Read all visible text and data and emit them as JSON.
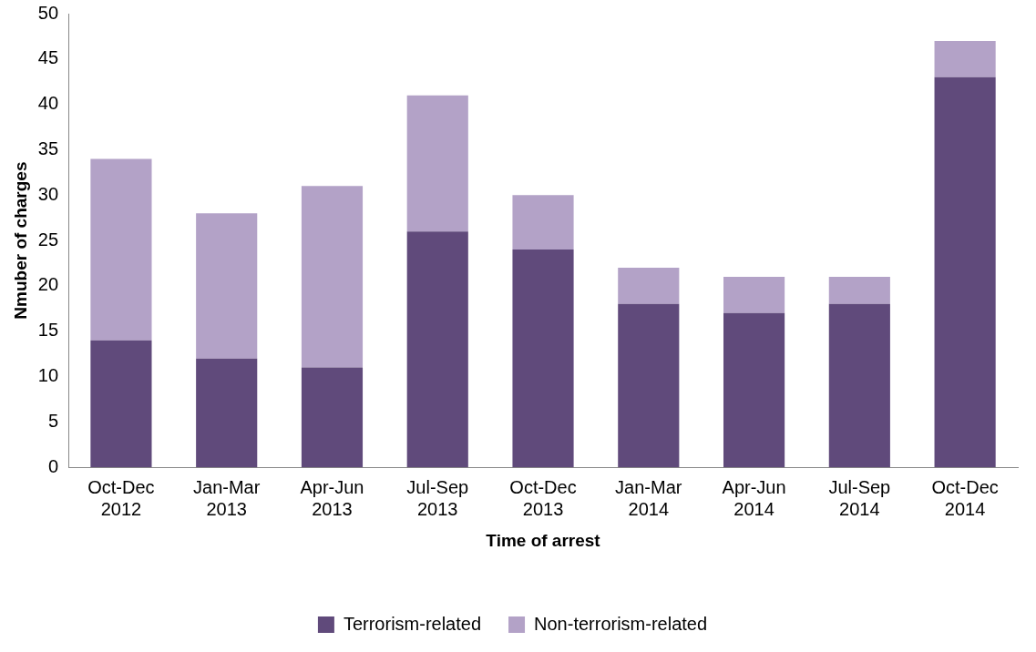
{
  "chart_data": {
    "type": "bar",
    "stacked": true,
    "xlabel": "Time of arrest",
    "ylabel": "Nmuber of charges",
    "categories": [
      "Oct-Dec 2012",
      "Jan-Mar 2013",
      "Apr-Jun 2013",
      "Jul-Sep 2013",
      "Oct-Dec 2013",
      "Jan-Mar 2014",
      "Apr-Jun 2014",
      "Jul-Sep 2014",
      "Oct-Dec 2014"
    ],
    "series": [
      {
        "name": "Terrorism-related",
        "color": "#604a7b",
        "values": [
          14,
          12,
          11,
          26,
          24,
          18,
          17,
          18,
          43
        ]
      },
      {
        "name": "Non-terrorism-related",
        "color": "#b3a2c7",
        "values": [
          20,
          16,
          20,
          15,
          6,
          4,
          4,
          3,
          4
        ]
      }
    ],
    "ylim": [
      0,
      50
    ],
    "yticks": [
      0,
      5,
      10,
      15,
      20,
      25,
      30,
      35,
      40,
      45,
      50
    ],
    "grid": false,
    "legend": "bottom"
  }
}
